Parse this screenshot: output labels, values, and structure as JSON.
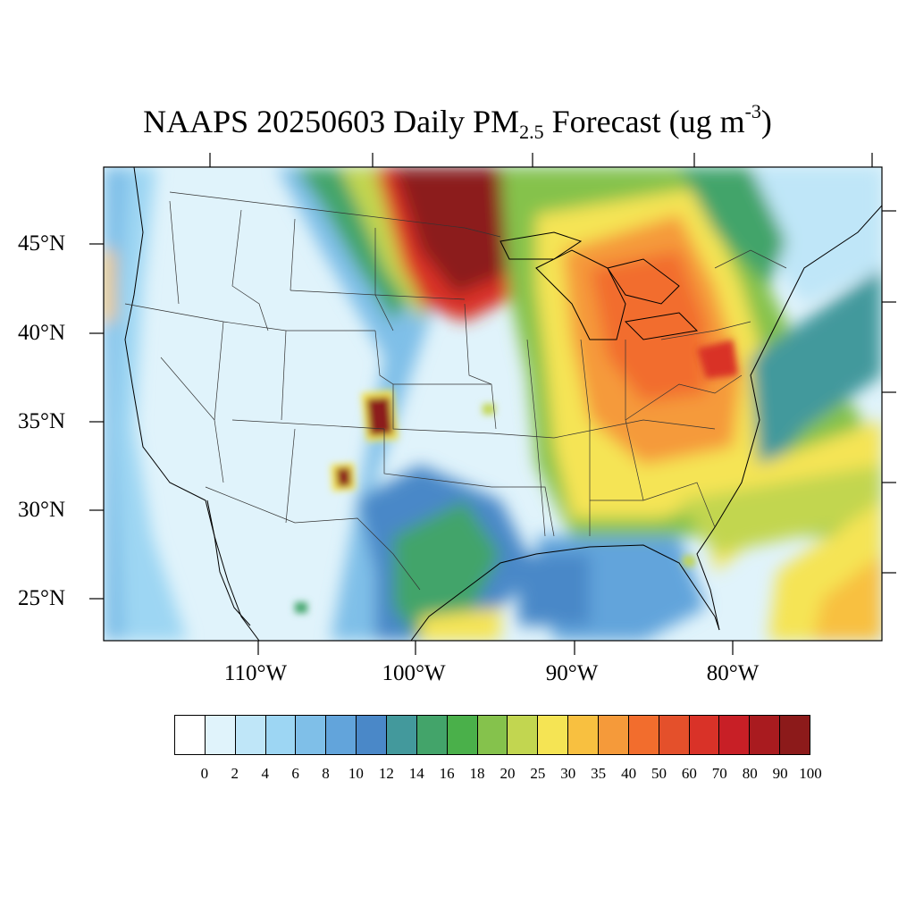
{
  "map": {
    "title_prefix": "NAAPS 20250603 Daily PM",
    "title_sub": "2.5",
    "title_suffix": " Forecast (ug m",
    "title_sup": "-3",
    "title_close": ")",
    "region": "Contiguous United States",
    "latitude_labels": [
      "45°N",
      "40°N",
      "35°N",
      "30°N",
      "25°N"
    ],
    "longitude_labels": [
      "110°W",
      "100°W",
      "90°W",
      "80°W"
    ],
    "plumes": [
      {
        "name": "north-central-plume",
        "level": "90-100+",
        "color": "#8c1a1a"
      },
      {
        "name": "great-lakes-ohio-plume",
        "level": "35-60",
        "color": "#f06a2a"
      },
      {
        "name": "colorado-kansas-hotspot",
        "level": "100+",
        "color": "#8c1a1a"
      },
      {
        "name": "new-mexico-hotspot",
        "level": "100+",
        "color": "#8c1a1a"
      },
      {
        "name": "mid-atlantic-hotspot",
        "level": "70-90",
        "color": "#d22a2a"
      }
    ]
  },
  "colorbar": {
    "labels": [
      "0",
      "2",
      "4",
      "6",
      "8",
      "10",
      "12",
      "14",
      "16",
      "18",
      "20",
      "25",
      "30",
      "35",
      "40",
      "50",
      "60",
      "70",
      "80",
      "90",
      "100"
    ],
    "colors": [
      "#ffffff",
      "#e0f3fb",
      "#bfe6f8",
      "#9dd6f3",
      "#7fbfe8",
      "#62a4db",
      "#4a88c8",
      "#43999c",
      "#43a46a",
      "#4ab04a",
      "#85c24c",
      "#c2d650",
      "#f5e454",
      "#f8c040",
      "#f59a3a",
      "#f26d2d",
      "#e4502b",
      "#d93228",
      "#c81f26",
      "#a91b1f",
      "#8c1a1a"
    ]
  }
}
